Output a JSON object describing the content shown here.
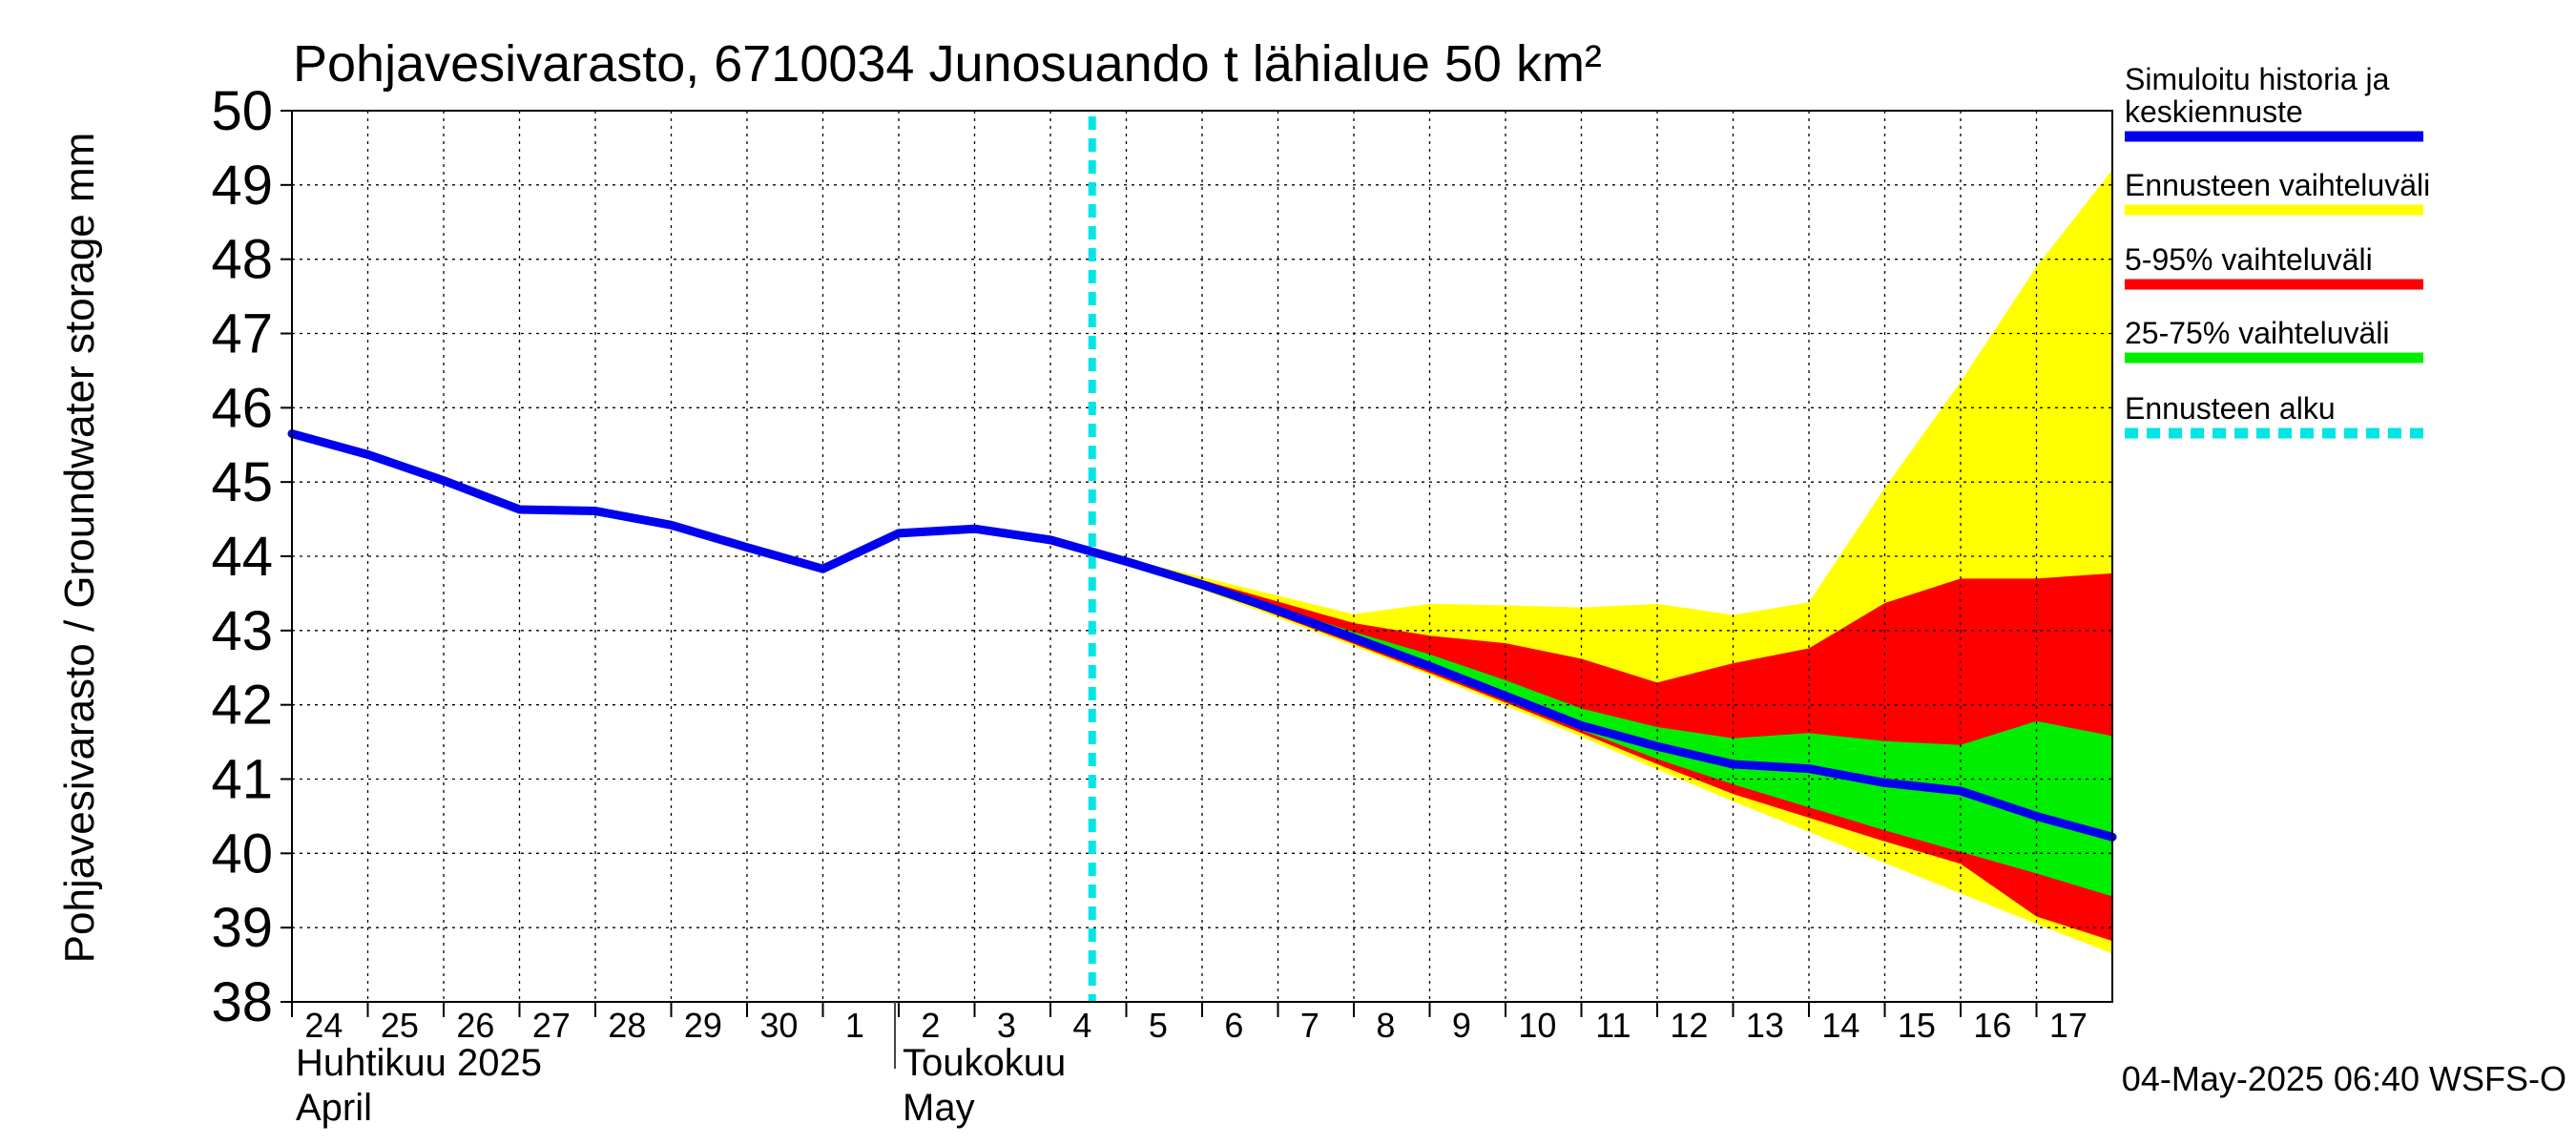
{
  "chart_data": {
    "type": "area",
    "title": "Pohjavesivarasto, 6710034 Junosuando t lähialue 50 km²",
    "ylabel": "Pohjavesivarasto / Groundwater storage   mm",
    "ylim": [
      38,
      50
    ],
    "yticks": [
      38,
      39,
      40,
      41,
      42,
      43,
      44,
      45,
      46,
      47,
      48,
      49,
      50
    ],
    "grid": true,
    "legend_position": "right",
    "x_start": "2025-04-24",
    "x_end": "2025-05-17",
    "x_tick_labels": [
      "24",
      "25",
      "26",
      "27",
      "28",
      "29",
      "30",
      "1",
      "2",
      "3",
      "4",
      "5",
      "6",
      "7",
      "8",
      "9",
      "10",
      "11",
      "12",
      "13",
      "14",
      "15",
      "16",
      "17"
    ],
    "month_labels": [
      {
        "line1": "Huhtikuu  2025",
        "line2": "April",
        "start_date": "2025-04-24"
      },
      {
        "line1": "Toukokuu",
        "line2": "May",
        "start_date": "2025-05-02"
      }
    ],
    "forecast_start": "2025-05-04",
    "timestamp": "04-May-2025 06:40 WSFS-O",
    "colors": {
      "history": "#0000ee",
      "range_full": "#ffff00",
      "range_5_95": "#ff0000",
      "range_25_75": "#00ee00",
      "forecast_start": "#00e5e5"
    },
    "legend": [
      {
        "label_lines": [
          "Simuloitu historia ja",
          "keskiennuste"
        ],
        "color": "#0000ee",
        "style": "solid"
      },
      {
        "label_lines": [
          "Ennusteen vaihteluväli"
        ],
        "color": "#ffff00",
        "style": "solid"
      },
      {
        "label_lines": [
          "5-95% vaihteluväli"
        ],
        "color": "#ff0000",
        "style": "solid"
      },
      {
        "label_lines": [
          "25-75% vaihteluväli"
        ],
        "color": "#00ee00",
        "style": "solid"
      },
      {
        "label_lines": [
          "Ennusteen alku"
        ],
        "color": "#00e5e5",
        "style": "dashed"
      }
    ],
    "series": [
      {
        "name": "Simuloitu historia ja keskiennuste",
        "x": [
          "2025-04-24",
          "2025-04-25",
          "2025-04-26",
          "2025-04-27",
          "2025-04-28",
          "2025-04-29",
          "2025-04-30",
          "2025-05-01",
          "2025-05-02",
          "2025-05-03",
          "2025-05-04",
          "2025-05-05",
          "2025-05-06",
          "2025-05-07",
          "2025-05-08",
          "2025-05-09",
          "2025-05-10",
          "2025-05-11",
          "2025-05-12",
          "2025-05-13",
          "2025-05-14",
          "2025-05-15",
          "2025-05-16",
          "2025-05-17",
          "2025-05-18"
        ],
        "y": [
          45.65,
          45.37,
          45.02,
          44.63,
          44.61,
          44.42,
          44.12,
          43.83,
          44.31,
          44.37,
          44.22,
          43.93,
          43.62,
          43.27,
          42.9,
          42.52,
          42.12,
          41.72,
          41.44,
          41.2,
          41.14,
          40.95,
          40.84,
          40.5,
          40.22
        ]
      },
      {
        "name": "Ennusteen vaihteluväli",
        "x": [
          "2025-05-04",
          "2025-05-05",
          "2025-05-06",
          "2025-05-07",
          "2025-05-08",
          "2025-05-09",
          "2025-05-10",
          "2025-05-11",
          "2025-05-12",
          "2025-05-13",
          "2025-05-14",
          "2025-05-15",
          "2025-05-16",
          "2025-05-17",
          "2025-05-18"
        ],
        "upper": [
          44.22,
          43.97,
          43.72,
          43.47,
          43.22,
          43.36,
          43.34,
          43.31,
          43.36,
          43.21,
          43.38,
          44.92,
          46.35,
          47.9,
          49.2
        ],
        "lower": [
          44.22,
          43.89,
          43.55,
          43.17,
          42.79,
          42.4,
          41.99,
          41.57,
          41.13,
          40.7,
          40.29,
          39.87,
          39.46,
          39.05,
          38.65
        ]
      },
      {
        "name": "5-95% vaihteluväli",
        "x": [
          "2025-05-04",
          "2025-05-05",
          "2025-05-06",
          "2025-05-07",
          "2025-05-08",
          "2025-05-09",
          "2025-05-10",
          "2025-05-11",
          "2025-05-12",
          "2025-05-13",
          "2025-05-14",
          "2025-05-15",
          "2025-05-16",
          "2025-05-17",
          "2025-05-18"
        ],
        "upper": [
          44.22,
          43.95,
          43.68,
          43.39,
          43.1,
          42.93,
          42.83,
          42.62,
          42.3,
          42.56,
          42.76,
          43.37,
          43.7,
          43.7,
          43.77
        ],
        "lower": [
          44.22,
          43.9,
          43.58,
          43.2,
          42.82,
          42.43,
          42.03,
          41.62,
          41.2,
          40.8,
          40.48,
          40.16,
          39.86,
          39.15,
          38.82
        ]
      },
      {
        "name": "25-75% vaihteluväli",
        "x": [
          "2025-05-04",
          "2025-05-05",
          "2025-05-06",
          "2025-05-07",
          "2025-05-08",
          "2025-05-09",
          "2025-05-10",
          "2025-05-11",
          "2025-05-12",
          "2025-05-13",
          "2025-05-14",
          "2025-05-15",
          "2025-05-16",
          "2025-05-17",
          "2025-05-18"
        ],
        "upper": [
          44.22,
          43.94,
          43.64,
          43.31,
          42.98,
          42.68,
          42.33,
          41.95,
          41.7,
          41.55,
          41.62,
          41.51,
          41.46,
          41.78,
          41.58
        ],
        "lower": [
          44.22,
          43.91,
          43.59,
          43.22,
          42.85,
          42.46,
          42.06,
          41.66,
          41.27,
          40.93,
          40.62,
          40.31,
          40.02,
          39.73,
          39.42
        ]
      }
    ]
  }
}
